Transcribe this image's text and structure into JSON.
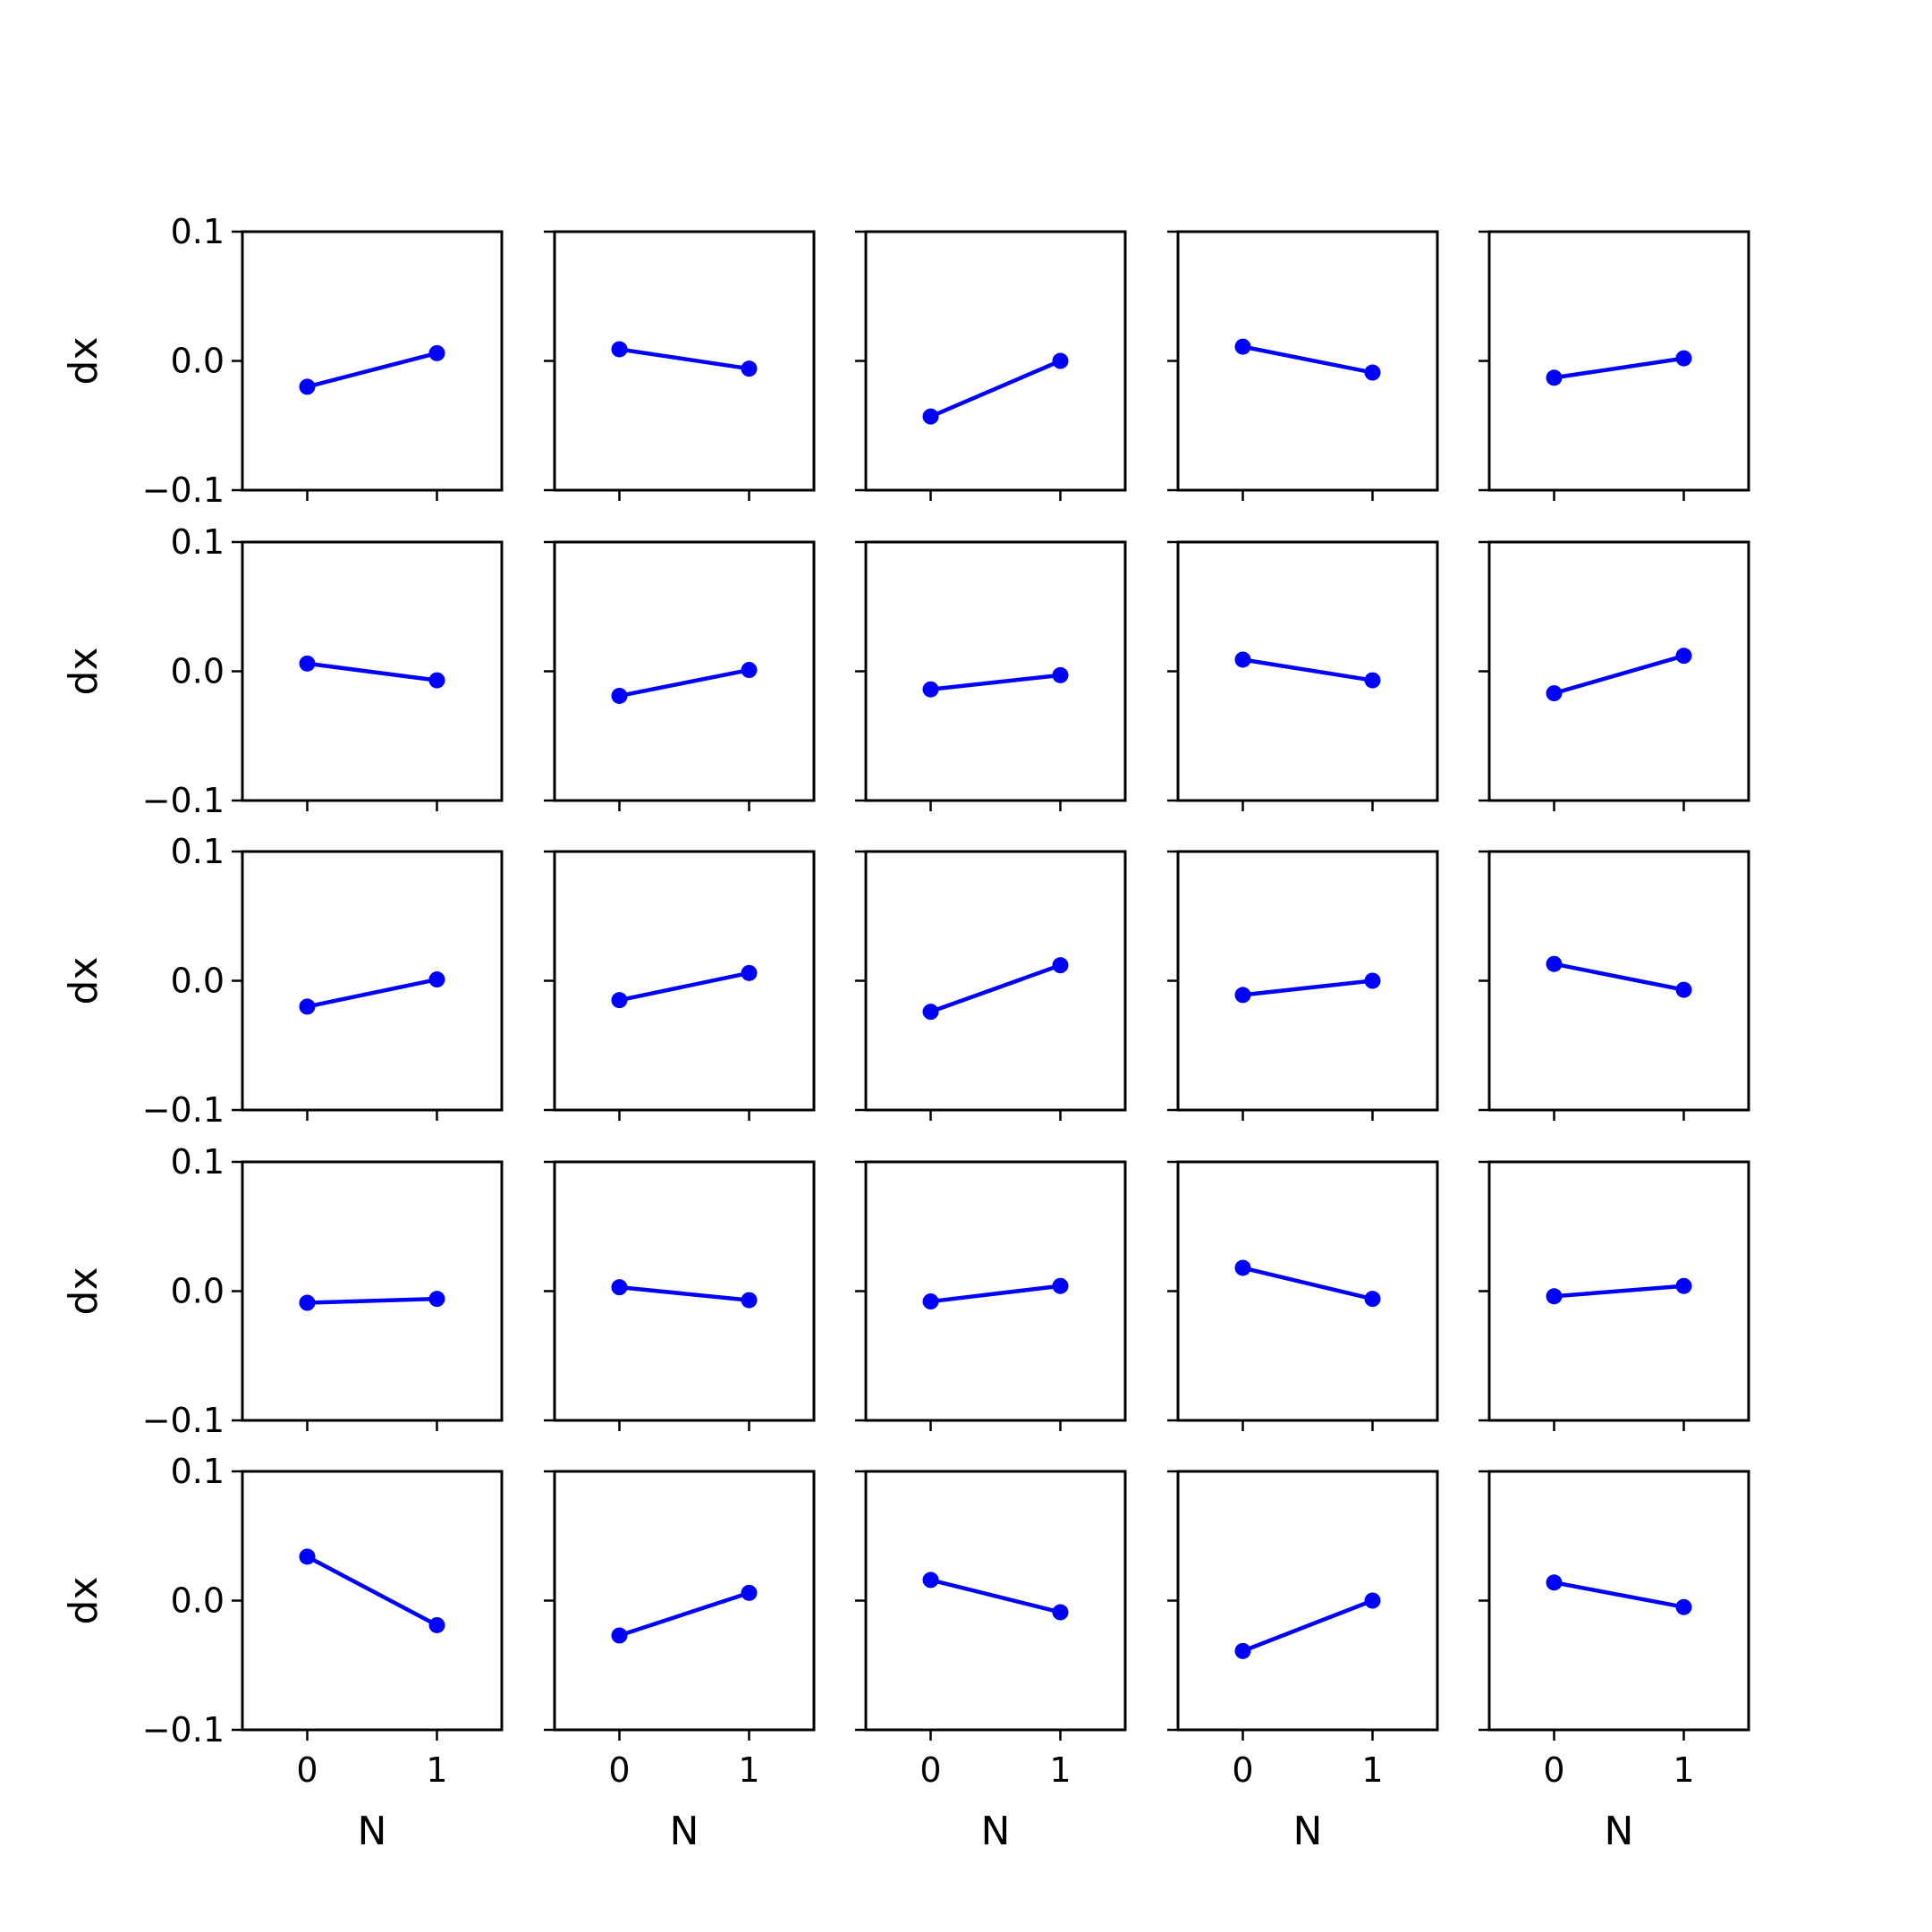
{
  "chart_data": {
    "type": "line",
    "layout": "5x5 grid of subplots",
    "ylabel": "dx",
    "xlabel": "N",
    "x_ticks": [
      "0",
      "1"
    ],
    "y_ticks": [
      "0.1",
      "0.0",
      "−0.1"
    ],
    "xlim": [
      -0.5,
      1.5
    ],
    "ylim": [
      -0.1,
      0.1
    ],
    "grid": false,
    "line_color": "#0000ff",
    "x": [
      0,
      1
    ],
    "panels": [
      [
        [
          -0.02,
          0.006
        ],
        [
          0.009,
          -0.006
        ],
        [
          -0.043,
          0.0
        ],
        [
          0.011,
          -0.009
        ],
        [
          -0.013,
          0.002
        ]
      ],
      [
        [
          0.006,
          -0.007
        ],
        [
          -0.019,
          0.001
        ],
        [
          -0.014,
          -0.003
        ],
        [
          0.009,
          -0.007
        ],
        [
          -0.017,
          0.012
        ]
      ],
      [
        [
          -0.02,
          0.001
        ],
        [
          -0.015,
          0.006
        ],
        [
          -0.024,
          0.012
        ],
        [
          -0.011,
          0.0
        ],
        [
          0.013,
          -0.007
        ]
      ],
      [
        [
          -0.009,
          -0.006
        ],
        [
          0.003,
          -0.007
        ],
        [
          -0.008,
          0.004
        ],
        [
          0.018,
          -0.006
        ],
        [
          -0.004,
          0.004
        ]
      ],
      [
        [
          0.034,
          -0.019
        ],
        [
          -0.027,
          0.006
        ],
        [
          0.016,
          -0.009
        ],
        [
          -0.039,
          0.0
        ],
        [
          0.014,
          -0.005
        ]
      ]
    ]
  }
}
